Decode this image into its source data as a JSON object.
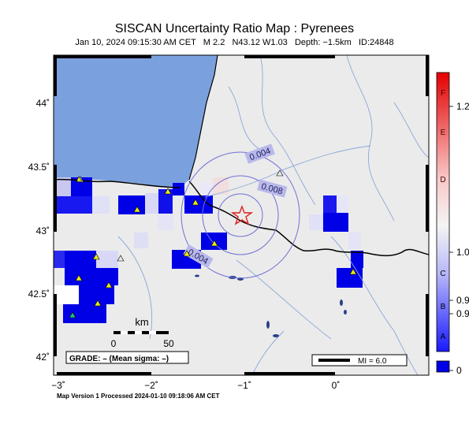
{
  "header": {
    "title": "SISCAN Uncertainty Ratio Map : Pyrenees",
    "subtitle": "Jan 10, 2024 09:15:30 AM CET   M 2.2   N43.12 W1.03   Depth: −1.5km   ID:24848"
  },
  "footer": {
    "processed": "Map Version 1 Processed 2024-01-10 09:18:06 AM CET"
  },
  "axes": {
    "lat_labels": [
      "44˚",
      "43.5˚",
      "43˚",
      "42.5˚",
      "42˚"
    ],
    "lon_labels": [
      "−3˚",
      "−2˚",
      "−1˚",
      "0˚"
    ]
  },
  "contours": {
    "labels": [
      "0.004",
      "0.008",
      "0.004"
    ]
  },
  "scalebar": {
    "unit": "km",
    "tick_0": "0",
    "tick_50": "50"
  },
  "grade_box": {
    "text": "GRADE: – (Mean sigma: –)"
  },
  "mi_legend": {
    "text": "MI = 6.0"
  },
  "colorbar": {
    "letters": [
      "F",
      "E",
      "D",
      "C",
      "B",
      "A"
    ],
    "values": [
      "1.2",
      "1.0",
      "0.9",
      "0.9",
      "0"
    ]
  },
  "colors": {
    "ocean": "#7ba0de",
    "land": "#ebebeb",
    "grade_deep": "#0000e6",
    "epicenter": "#e02020",
    "station": "#e8e81a",
    "station_alt": "#20c080"
  }
}
